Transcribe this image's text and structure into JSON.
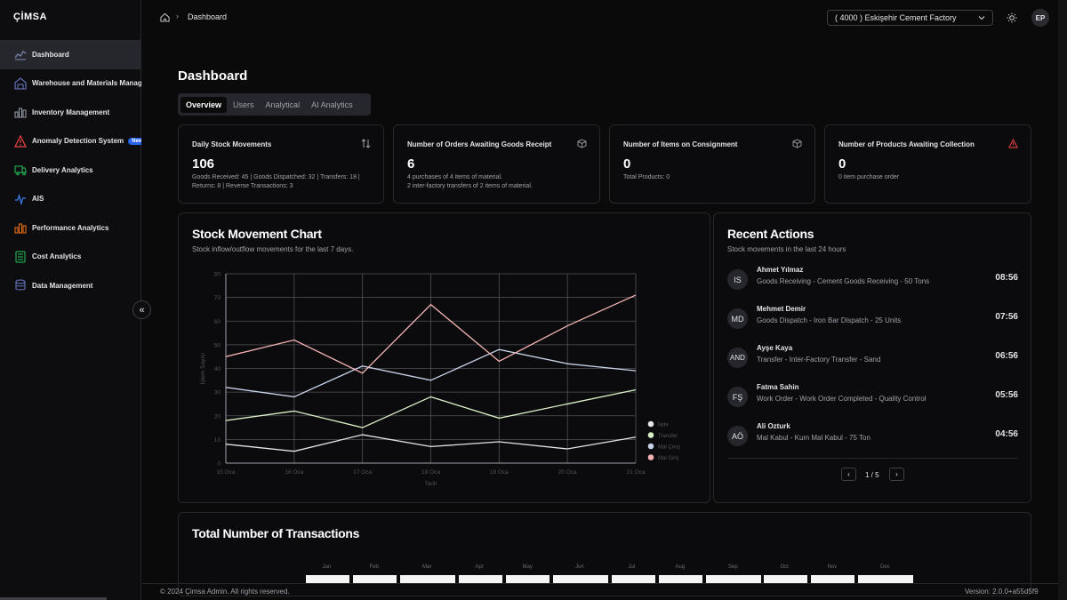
{
  "brand": {
    "logo": "ÇİMSA"
  },
  "sidebar": {
    "items": [
      {
        "label": "Dashboard",
        "icon": "line-chart-icon",
        "active": true
      },
      {
        "label": "Warehouse and Materials Management",
        "icon": "warehouse-icon"
      },
      {
        "label": "Inventory Management",
        "icon": "bar-chart-icon"
      },
      {
        "label": "Anomaly Detection System",
        "icon": "warning-triangle-icon",
        "badge": "New"
      },
      {
        "label": "Delivery Analytics",
        "icon": "truck-icon"
      },
      {
        "label": "AIS",
        "icon": "pulse-icon"
      },
      {
        "label": "Performance Analytics",
        "icon": "performance-bars-icon"
      },
      {
        "label": "Cost Analytics",
        "icon": "calculator-icon"
      },
      {
        "label": "Data Management",
        "icon": "database-icon"
      }
    ],
    "collapse_icon": "«"
  },
  "header": {
    "breadcrumb": "Dashboard",
    "factory": "( 4000 ) Eskişehir Cement Factory",
    "user_initials": "EP"
  },
  "page": {
    "title": "Dashboard"
  },
  "tabs": [
    "Overview",
    "Users",
    "Analytical",
    "AI Analytics"
  ],
  "stats": [
    {
      "title": "Daily Stock Movements",
      "value": "106",
      "sub": "Goods Received: 45 | Goods Dispatched: 32 | Transfers: 18 | Returns: 8 | Reverse Transactions: 3",
      "icon": "sort-arrows-icon"
    },
    {
      "title": "Number of Orders Awaiting Goods Receipt",
      "value": "6",
      "sub": "4 purchases of 4 items of material.",
      "sub2": "2 inter-factory transfers of 2 items of material.",
      "icon": "package-icon"
    },
    {
      "title": "Number of Items on Consignment",
      "value": "0",
      "sub": "Total Products: 0",
      "icon": "package-icon"
    },
    {
      "title": "Number of Products Awaiting Collection",
      "value": "0",
      "sub": "0 item purchase order",
      "icon": "alert-triangle-icon",
      "icon_color": "#ef4444"
    }
  ],
  "stock_chart": {
    "title": "Stock Movement Chart",
    "subtitle": "Stock inflow/outflow movements for the last 7 days."
  },
  "chart_data": {
    "type": "line",
    "x": [
      "15 Oca",
      "16 Oca",
      "17 Oca",
      "18 Oca",
      "19 Oca",
      "20 Oca",
      "21 Oca"
    ],
    "xlabel": "Tarih",
    "ylabel": "İşlem Sayısı",
    "ylim": [
      0,
      80
    ],
    "yticks": [
      0,
      10,
      20,
      30,
      40,
      50,
      60,
      70,
      80
    ],
    "grid": true,
    "legend_position": "right",
    "series": [
      {
        "name": "İade",
        "color": "#e4e4e7",
        "values": [
          8,
          5,
          12,
          7,
          9,
          6,
          11
        ]
      },
      {
        "name": "Transfer",
        "color": "#d9f0c4",
        "values": [
          18,
          22,
          15,
          28,
          19,
          25,
          31
        ]
      },
      {
        "name": "Mal Çıkış",
        "color": "#c7d2e8",
        "values": [
          32,
          28,
          41,
          35,
          48,
          42,
          39
        ]
      },
      {
        "name": "Mal Giriş",
        "color": "#f4b4b4",
        "values": [
          45,
          52,
          38,
          67,
          43,
          58,
          71
        ]
      }
    ]
  },
  "recent": {
    "title": "Recent Actions",
    "subtitle": "Stock movements in the last 24 hours",
    "items": [
      {
        "initials": "IS",
        "name": "Ahmet Yılmaz",
        "desc": "Goods Receiving - Cement Goods Receiving - 50 Tons",
        "time": "08:56"
      },
      {
        "initials": "MD",
        "name": "Mehmet Demir",
        "desc": "Goods Dispatch - Iron Bar Dispatch - 25 Units",
        "time": "07:56"
      },
      {
        "initials": "AND",
        "name": "Ayşe Kaya",
        "desc": "Transfer - Inter-Factory Transfer - Sand",
        "time": "06:56"
      },
      {
        "initials": "FŞ",
        "name": "Fatma Sahin",
        "desc": "Work Order - Work Order Completed - Quality Control",
        "time": "05:56"
      },
      {
        "initials": "AÖ",
        "name": "Ali Ozturk",
        "desc": "Mal Kabul - Kum Mal Kabul - 75 Ton",
        "time": "04:56"
      }
    ],
    "pager": "1 / 5"
  },
  "transactions": {
    "title": "Total Number of Transactions",
    "months": [
      "Jan",
      "Feb",
      "Mar",
      "Apr",
      "May",
      "Jun",
      "Jul",
      "Aug",
      "Sep",
      "Oct",
      "Nov",
      "Dec"
    ]
  },
  "footer": {
    "copyright": "© 2024 Çimsa Admin. All rights reserved.",
    "version": "Version: 2.0.0+a55d5f9"
  }
}
